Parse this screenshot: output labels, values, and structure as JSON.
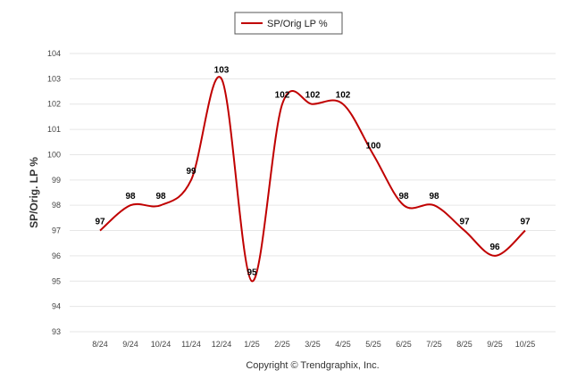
{
  "chart_data": {
    "type": "line",
    "legend_position": "top-center",
    "grid": true,
    "ylabel": "SP/Orig. LP %",
    "ylim": [
      93,
      104
    ],
    "yticks": [
      93,
      94,
      95,
      96,
      97,
      98,
      99,
      100,
      101,
      102,
      103,
      104
    ],
    "categories": [
      "8/24",
      "9/24",
      "10/24",
      "11/24",
      "12/24",
      "1/25",
      "2/25",
      "3/25",
      "4/25",
      "5/25",
      "6/25",
      "7/25",
      "8/25",
      "9/25",
      "10/25"
    ],
    "series": [
      {
        "name": "SP/Orig LP %",
        "color": "#c00000",
        "values": [
          97,
          98,
          98,
          99,
          103,
          95,
          102,
          102,
          102,
          100,
          98,
          98,
          97,
          96,
          97
        ]
      }
    ],
    "copyright": "Copyright © Trendgraphix, Inc."
  }
}
